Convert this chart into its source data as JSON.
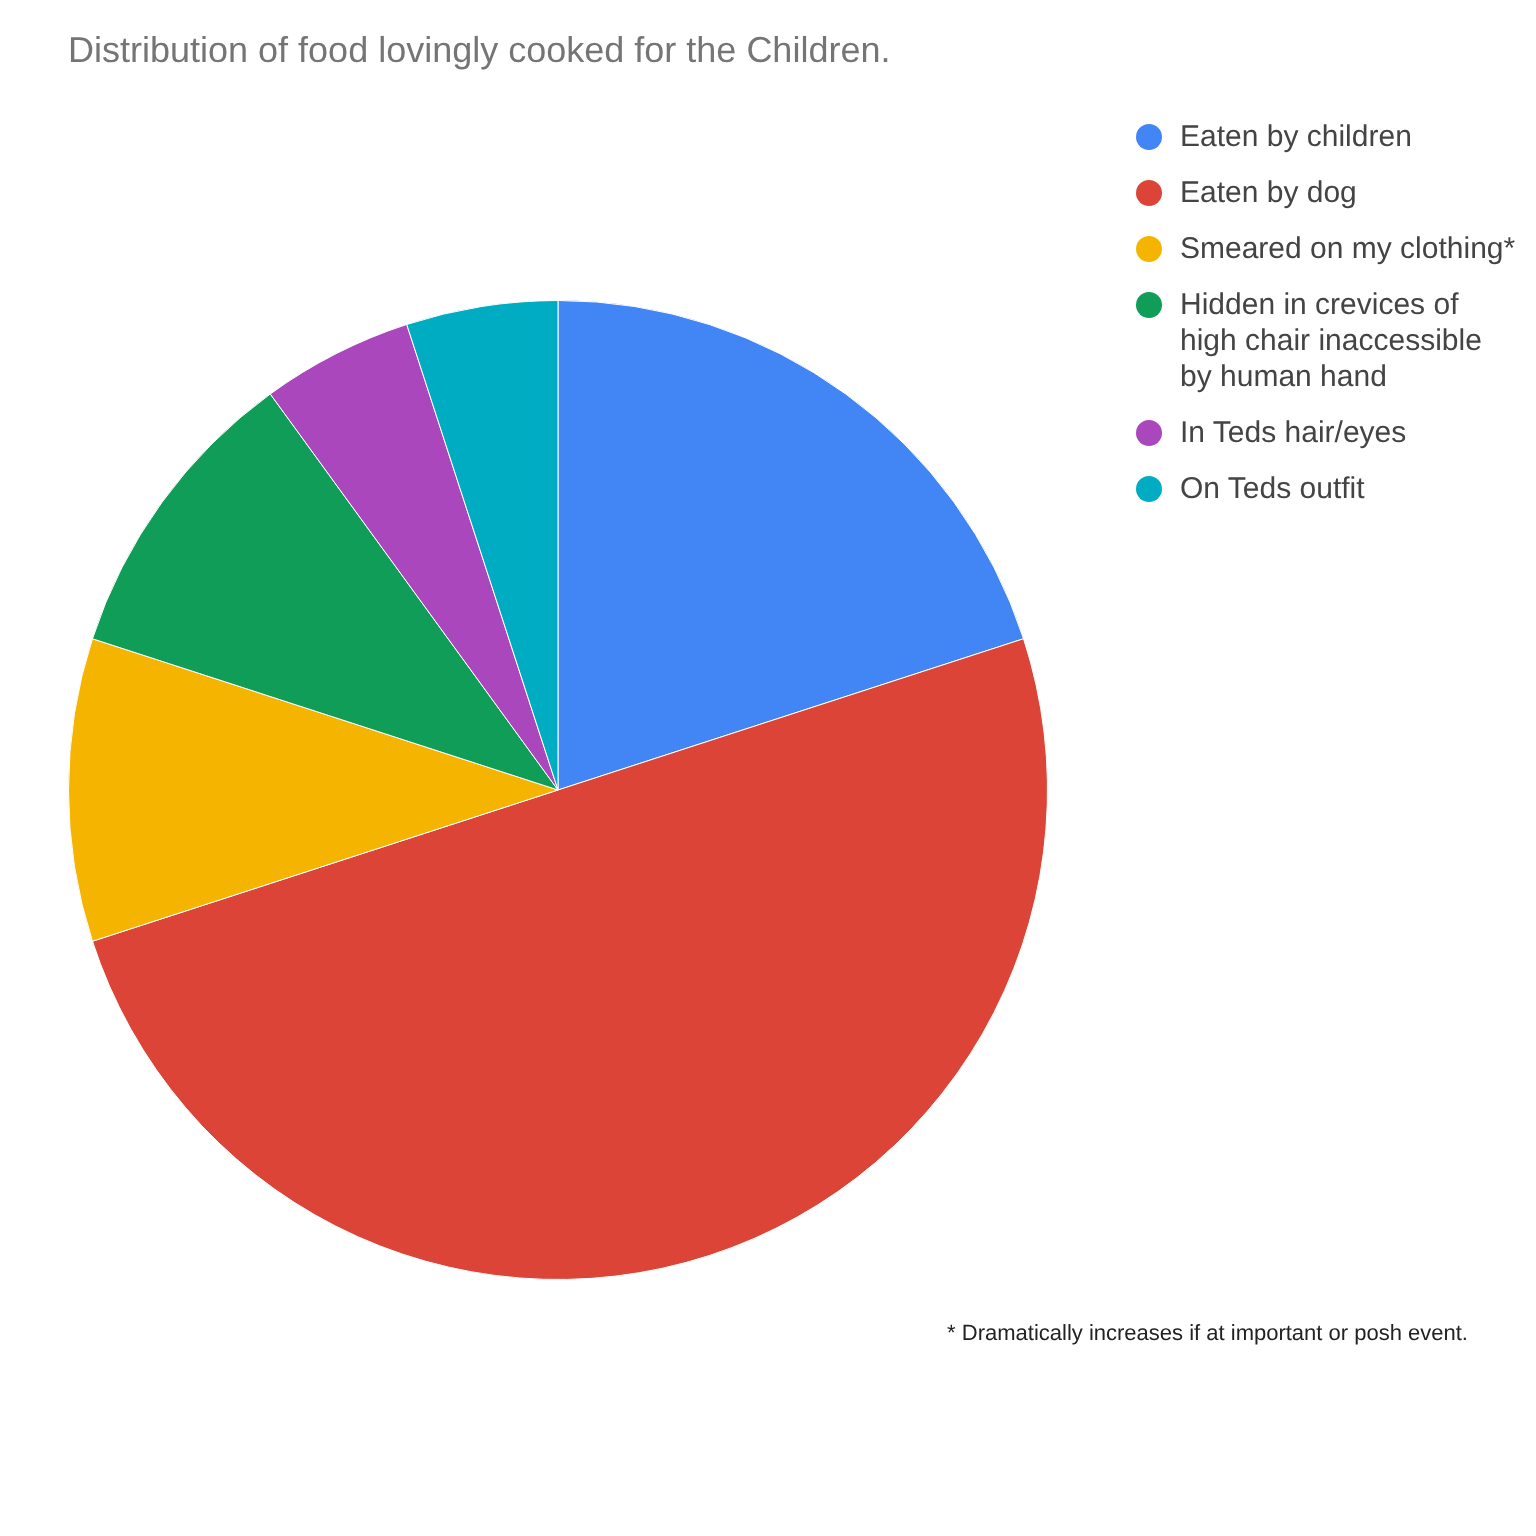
{
  "chart_data": {
    "type": "pie",
    "title": "Distribution of food lovingly cooked for the Children.",
    "categories": [
      "Eaten by children",
      "Eaten by dog",
      "Smeared on my clothing*",
      "Hidden in crevices of high chair inaccessible by human hand",
      "In Teds hair/eyes",
      "On Teds outfit"
    ],
    "values": [
      20,
      50,
      10,
      10,
      5,
      5
    ],
    "colors": [
      "#4285f4",
      "#db4437",
      "#f4b400",
      "#0f9d58",
      "#ab47bc",
      "#00acc1"
    ],
    "legend": "top right",
    "annotations": [
      "* Dramatically increases if at important or posh event."
    ]
  }
}
